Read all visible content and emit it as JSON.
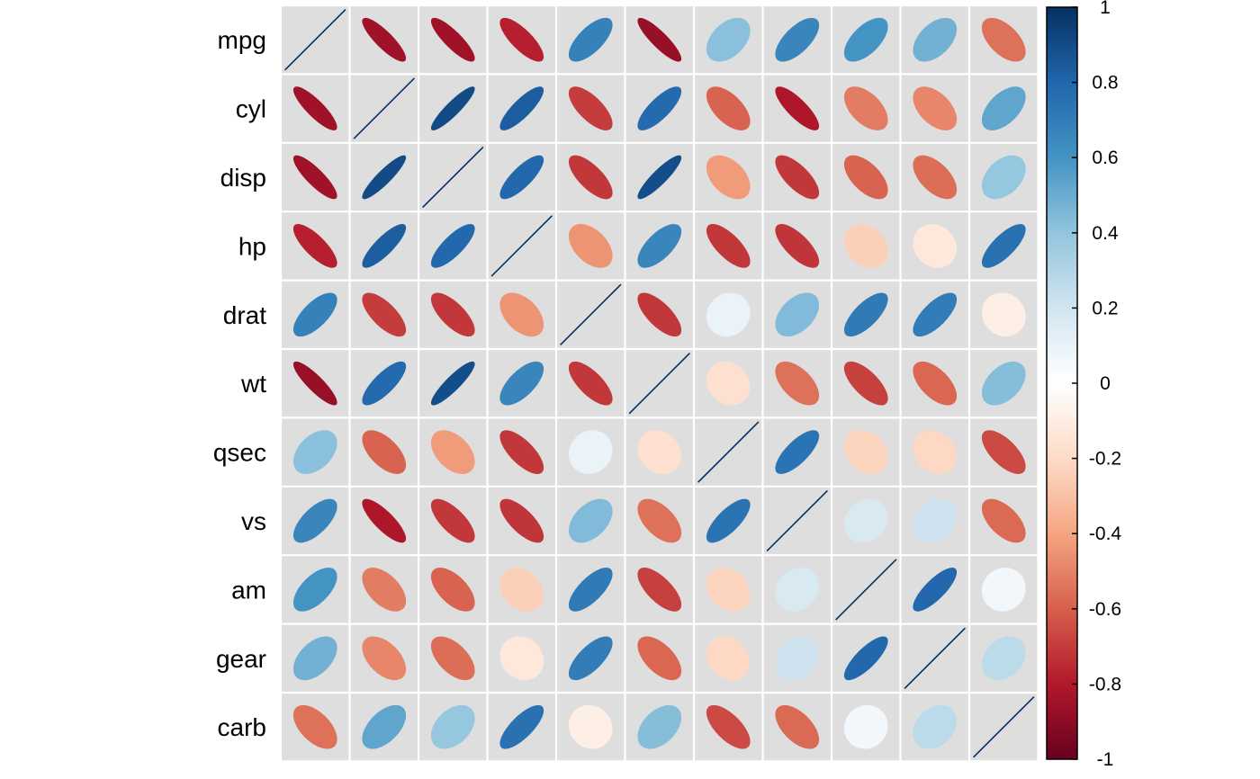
{
  "chart_data": {
    "type": "heatmap",
    "variables": [
      "mpg",
      "cyl",
      "disp",
      "hp",
      "drat",
      "wt",
      "qsec",
      "vs",
      "am",
      "gear",
      "carb"
    ],
    "matrix": [
      [
        1.0,
        -0.85,
        -0.85,
        -0.78,
        0.68,
        -0.87,
        0.42,
        0.66,
        0.6,
        0.48,
        -0.55
      ],
      [
        -0.85,
        1.0,
        0.9,
        0.83,
        -0.7,
        0.78,
        -0.59,
        -0.81,
        -0.52,
        -0.49,
        0.53
      ],
      [
        -0.85,
        0.9,
        1.0,
        0.79,
        -0.71,
        0.89,
        -0.43,
        -0.71,
        -0.59,
        -0.56,
        0.39
      ],
      [
        -0.78,
        0.83,
        0.79,
        1.0,
        -0.45,
        0.66,
        -0.71,
        -0.72,
        -0.24,
        -0.13,
        0.75
      ],
      [
        0.68,
        -0.7,
        -0.71,
        -0.45,
        1.0,
        -0.71,
        0.09,
        0.44,
        0.71,
        0.7,
        -0.09
      ],
      [
        -0.87,
        0.78,
        0.89,
        0.66,
        -0.71,
        1.0,
        -0.17,
        -0.55,
        -0.69,
        -0.58,
        0.43
      ],
      [
        0.42,
        -0.59,
        -0.43,
        -0.71,
        0.09,
        -0.17,
        1.0,
        0.74,
        -0.23,
        -0.21,
        -0.66
      ],
      [
        0.66,
        -0.81,
        -0.71,
        -0.72,
        0.44,
        -0.55,
        0.74,
        1.0,
        0.17,
        0.21,
        -0.57
      ],
      [
        0.6,
        -0.52,
        -0.59,
        -0.24,
        0.71,
        -0.69,
        -0.23,
        0.17,
        1.0,
        0.79,
        0.06
      ],
      [
        0.48,
        -0.49,
        -0.56,
        -0.13,
        0.7,
        -0.58,
        -0.21,
        0.21,
        0.79,
        1.0,
        0.27
      ],
      [
        -0.55,
        0.53,
        0.39,
        0.75,
        -0.09,
        0.43,
        -0.66,
        -0.57,
        0.06,
        0.27,
        1.0
      ]
    ],
    "colorbar": {
      "range": [
        -1,
        1
      ],
      "ticks": [
        "1",
        "0.8",
        "0.6",
        "0.4",
        "0.2",
        "0",
        "-0.2",
        "-0.4",
        "-0.6",
        "-0.8",
        "-1"
      ],
      "placement": "right"
    },
    "colors": {
      "palette": [
        "#67001F",
        "#B2182B",
        "#D6604D",
        "#F4A582",
        "#FDDBC7",
        "#FFFFFF",
        "#D1E5F0",
        "#92C5DE",
        "#4393C3",
        "#2166AC",
        "#053061"
      ],
      "cell_background": "#DEDEDE",
      "grid_line": "#FFFFFF",
      "diagonal_line": "#053061"
    }
  }
}
